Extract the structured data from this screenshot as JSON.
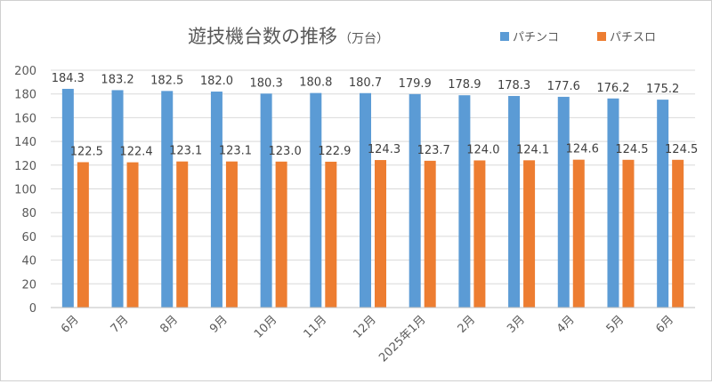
{
  "chart_data": {
    "type": "bar",
    "title": "遊技機台数の推移",
    "unit": "（万台）",
    "categories": [
      "6月",
      "7月",
      "8月",
      "9月",
      "10月",
      "11月",
      "12月",
      "2025年1月",
      "2月",
      "3月",
      "4月",
      "5月",
      "6月"
    ],
    "series": [
      {
        "name": "パチンコ",
        "color": "#5b9bd5",
        "values": [
          184.3,
          183.2,
          182.5,
          182.0,
          180.3,
          180.8,
          180.7,
          179.9,
          178.9,
          178.3,
          177.6,
          176.2,
          175.2
        ]
      },
      {
        "name": "パチスロ",
        "color": "#ed7d31",
        "values": [
          122.5,
          122.4,
          123.1,
          123.1,
          123.0,
          122.9,
          124.3,
          123.7,
          124.0,
          124.1,
          124.6,
          124.5,
          124.5
        ]
      }
    ],
    "ylim": [
      0,
      200
    ],
    "yticks": [
      0,
      20,
      40,
      60,
      80,
      100,
      120,
      140,
      160,
      180,
      200
    ],
    "grid": true,
    "legend_position": "top-right",
    "data_labels": true
  }
}
